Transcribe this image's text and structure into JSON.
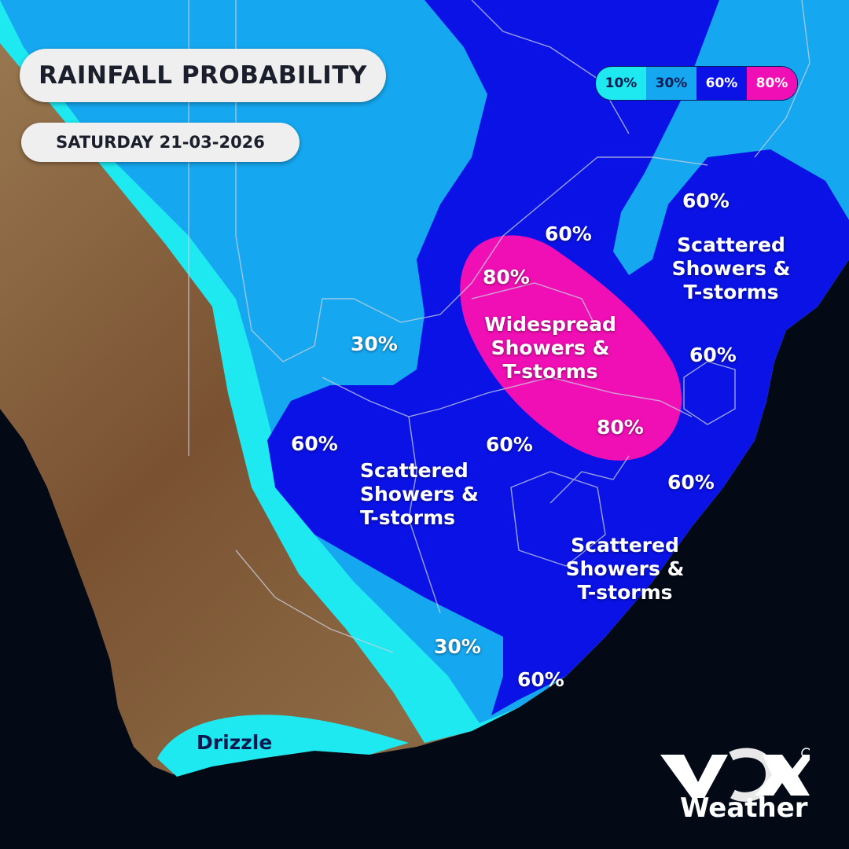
{
  "header": {
    "title": "RAINFALL PROBABILITY",
    "date": "SATURDAY 21-03-2026"
  },
  "legend": [
    {
      "label": "10%",
      "color": "#1ee8f0",
      "text_color": "#0a1a50"
    },
    {
      "label": "30%",
      "color": "#15a7ef",
      "text_color": "#0a1a50"
    },
    {
      "label": "60%",
      "color": "#0a12e6",
      "text_color": "#ffffff"
    },
    {
      "label": "80%",
      "color": "#f00fb4",
      "text_color": "#ffffff"
    }
  ],
  "labels": {
    "p60_north": "60%",
    "p60_northeast": "60%",
    "p80_north": "80%",
    "p30_west": "30%",
    "p60_east": "60%",
    "p60_southwest": "60%",
    "p60_center": "60%",
    "p80_south": "80%",
    "p60_southeast": "60%",
    "p30_south": "30%",
    "p60_south": "60%",
    "wide_1": "Widespread",
    "wide_2": "Showers &",
    "wide_3": "T-storms",
    "sc_ne_1": "Scattered",
    "sc_ne_2": "Showers &",
    "sc_ne_3": "T-storms",
    "sc_w_1": "Scattered",
    "sc_w_2": "Showers &",
    "sc_w_3": "T-storms",
    "sc_se_1": "Scattered",
    "sc_se_2": "Showers &",
    "sc_se_3": "T-storms",
    "drizzle": "Drizzle"
  },
  "brand": {
    "logo_icon": "vox-logo",
    "name": "Weather",
    "registered": "®"
  },
  "colors": {
    "ocean": "#030a16",
    "land": "#8a6a45",
    "p10": "#1ee8f0",
    "p30": "#15a7ef",
    "p60": "#0a12e6",
    "p80": "#f00fb4"
  }
}
